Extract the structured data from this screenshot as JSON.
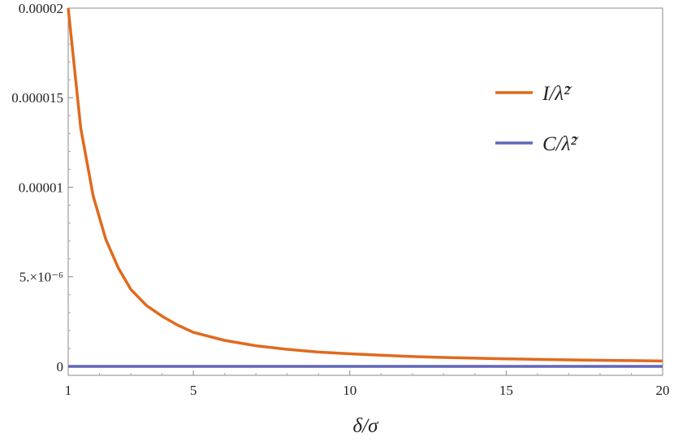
{
  "chart_data": {
    "type": "line",
    "xlabel": "δ/σ",
    "ylabel": "",
    "xlim": [
      1,
      20
    ],
    "ylim": [
      -5e-07,
      2e-05
    ],
    "x_ticks": [
      {
        "value": 1,
        "label": "1"
      },
      {
        "value": 5,
        "label": "5"
      },
      {
        "value": 10,
        "label": "10"
      },
      {
        "value": 15,
        "label": "15"
      },
      {
        "value": 20,
        "label": "20"
      }
    ],
    "y_ticks": [
      {
        "value": 0,
        "label": "0"
      },
      {
        "value": 5e-06,
        "label": "5.×10⁻⁶"
      },
      {
        "value": 1e-05,
        "label": "0.00001"
      },
      {
        "value": 1.5e-05,
        "label": "0.000015"
      },
      {
        "value": 2e-05,
        "label": "0.00002"
      }
    ],
    "grid": false,
    "legend_position": "top-right",
    "series": [
      {
        "name": "I/λ̃²",
        "color": "#e06a1e",
        "x": [
          1,
          1.4,
          1.8,
          2.2,
          2.6,
          3,
          3.5,
          4,
          4.5,
          5,
          6,
          7,
          8,
          9,
          10,
          11,
          12,
          13,
          14,
          15,
          16,
          17,
          18,
          19,
          20
        ],
        "y": [
          2e-05,
          1.33e-05,
          9.5e-06,
          7.1e-06,
          5.5e-06,
          4.3e-06,
          3.4e-06,
          2.8e-06,
          2.3e-06,
          1.9e-06,
          1.45e-06,
          1.15e-06,
          9.5e-07,
          8e-07,
          7e-07,
          6.2e-07,
          5.5e-07,
          5e-07,
          4.6e-07,
          4.2e-07,
          3.9e-07,
          3.6e-07,
          3.4e-07,
          3.2e-07,
          3e-07
        ]
      },
      {
        "name": "C/λ̃²",
        "color": "#6167b8",
        "x": [
          1,
          20
        ],
        "y": [
          0,
          0
        ]
      }
    ]
  }
}
